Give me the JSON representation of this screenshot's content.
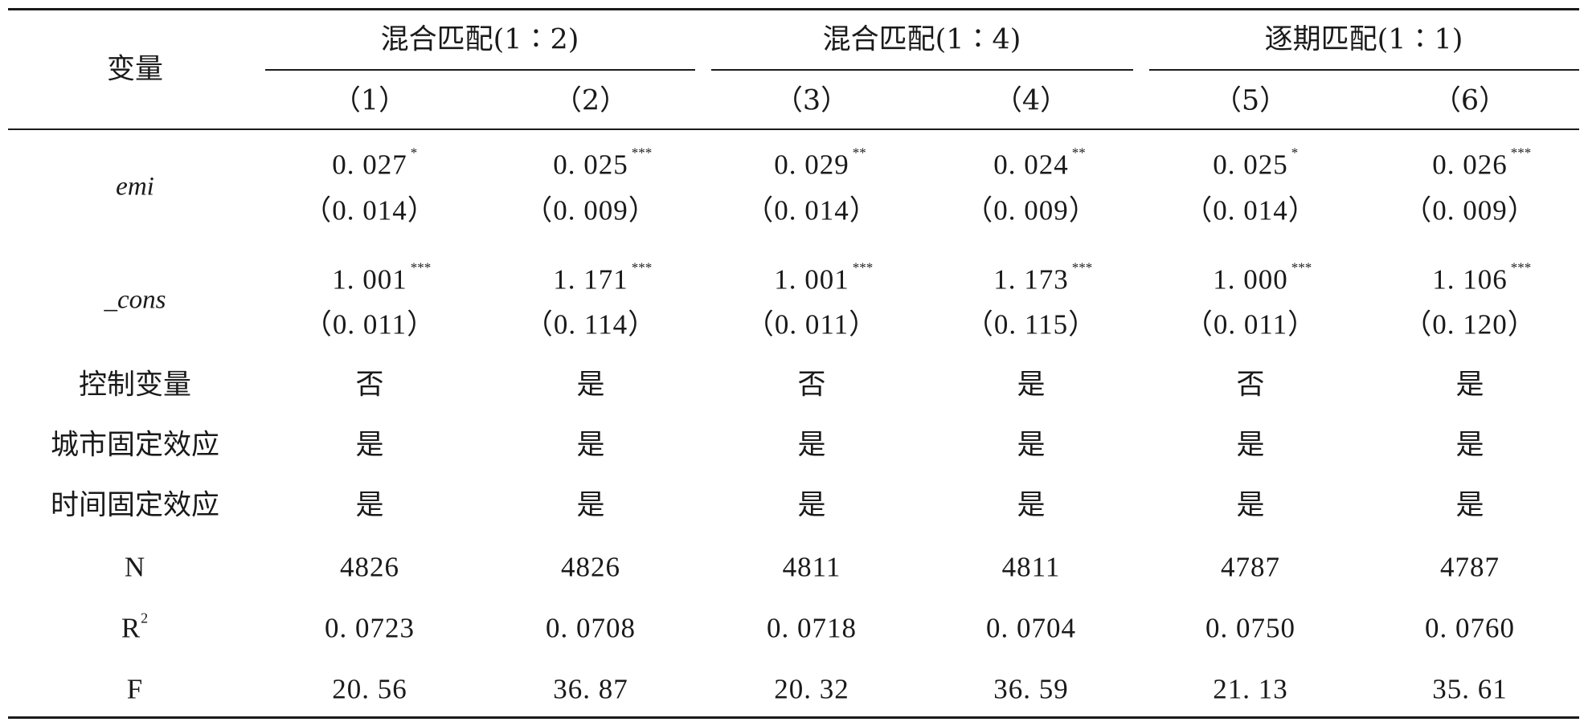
{
  "header": {
    "variable_label": "变量",
    "groups": [
      "混合匹配(1∶2)",
      "混合匹配(1∶4)",
      "逐期匹配(1∶1)"
    ],
    "columns": [
      "（1）",
      "（2）",
      "（3）",
      "（4）",
      "（5）",
      "（6）"
    ]
  },
  "rows": {
    "emi": {
      "label": "emi",
      "coef": [
        "0. 027",
        "0. 025",
        "0. 029",
        "0. 024",
        "0. 025",
        "0. 026"
      ],
      "stars": [
        "*",
        "***",
        "**",
        "**",
        "*",
        "***"
      ],
      "se": [
        "（0. 014）",
        "（0. 009）",
        "（0. 014）",
        "（0. 009）",
        "（0. 014）",
        "（0. 009）"
      ]
    },
    "cons": {
      "label": "_cons",
      "coef": [
        "1. 001",
        "1. 171",
        "1. 001",
        "1. 173",
        "1. 000",
        "1. 106"
      ],
      "stars": [
        "***",
        "***",
        "***",
        "***",
        "***",
        "***"
      ],
      "se": [
        "（0. 011）",
        "（0. 114）",
        "（0. 011）",
        "（0. 115）",
        "（0. 011）",
        "（0. 120）"
      ]
    },
    "controls": {
      "label": "控制变量",
      "values": [
        "否",
        "是",
        "否",
        "是",
        "否",
        "是"
      ]
    },
    "city_fe": {
      "label": "城市固定效应",
      "values": [
        "是",
        "是",
        "是",
        "是",
        "是",
        "是"
      ]
    },
    "time_fe": {
      "label": "时间固定效应",
      "values": [
        "是",
        "是",
        "是",
        "是",
        "是",
        "是"
      ]
    },
    "n": {
      "label": "N",
      "values": [
        "4826",
        "4826",
        "4811",
        "4811",
        "4787",
        "4787"
      ]
    },
    "r2": {
      "label": "R",
      "label_sup": "2",
      "values": [
        "0. 0723",
        "0. 0708",
        "0. 0718",
        "0. 0704",
        "0. 0750",
        "0. 0760"
      ]
    },
    "f": {
      "label": "F",
      "values": [
        "20. 56",
        "36. 87",
        "20. 32",
        "36. 59",
        "21. 13",
        "35. 61"
      ]
    }
  }
}
